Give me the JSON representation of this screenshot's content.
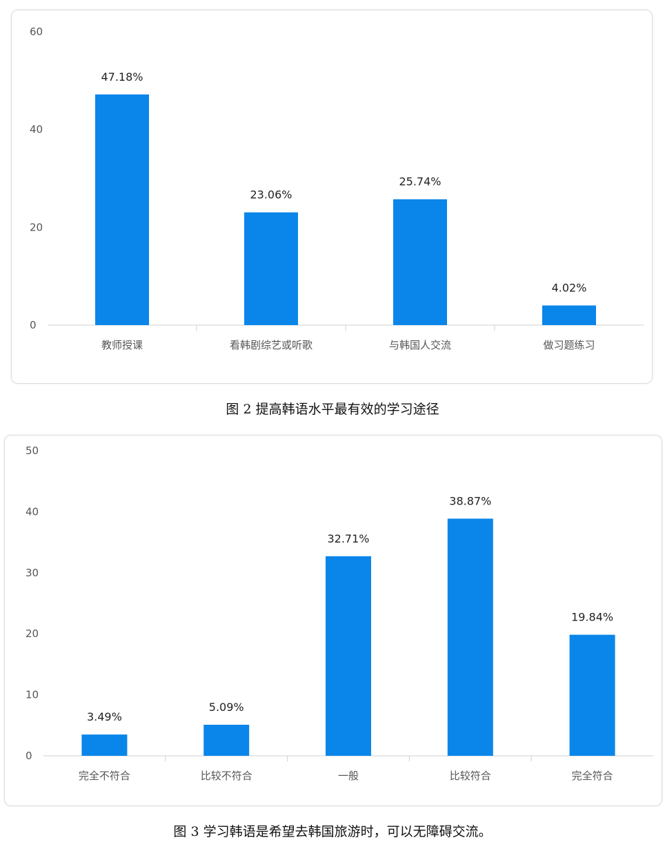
{
  "chart_data": [
    {
      "type": "bar",
      "title": "",
      "xlabel": "",
      "ylabel": "",
      "ylim": [
        0,
        60
      ],
      "yticks": [
        0,
        20,
        40,
        60
      ],
      "categories": [
        "教师授课",
        "看韩剧综艺或听歌",
        "与韩国人交流",
        "做习题练习"
      ],
      "values": [
        47.18,
        23.06,
        25.74,
        4.02
      ],
      "data_labels": [
        "47.18%",
        "23.06%",
        "25.74%",
        "4.02%"
      ],
      "color": "#0a86ea",
      "grid": false
    },
    {
      "type": "bar",
      "title": "",
      "xlabel": "",
      "ylabel": "",
      "ylim": [
        0,
        50
      ],
      "yticks": [
        0,
        10,
        20,
        30,
        40,
        50
      ],
      "categories": [
        "完全不符合",
        "比较不符合",
        "一般",
        "比较符合",
        "完全符合"
      ],
      "values": [
        3.49,
        5.09,
        32.71,
        38.87,
        19.84
      ],
      "data_labels": [
        "3.49%",
        "5.09%",
        "32.71%",
        "38.87%",
        "19.84%"
      ],
      "color": "#0a86ea",
      "grid": false
    }
  ],
  "captions": {
    "fig2": "图 2 提高韩语水平最有效的学习途径",
    "fig3": "图 3 学习韩语是希望去韩国旅游时，可以无障碍交流。"
  }
}
